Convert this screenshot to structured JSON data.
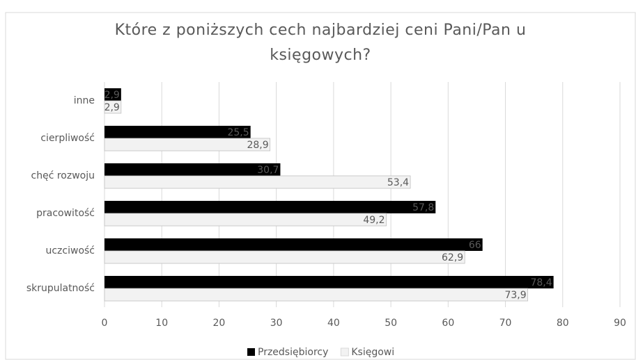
{
  "chart_data": {
    "type": "bar",
    "orientation": "horizontal",
    "title": "Które z poniższych cech najbardziej ceni Pani/Pan u księgowych?",
    "categories": [
      "inne",
      "cierpliwość",
      "chęć rozwoju",
      "pracowitość",
      "uczciwość",
      "skrupulatność"
    ],
    "series": [
      {
        "name": "Przedsiębiorcy",
        "color": "#000000",
        "values": [
          2.9,
          25.5,
          30.7,
          57.8,
          66,
          78.4
        ],
        "value_labels": [
          "2,9",
          "25,5",
          "30,7",
          "57,8",
          "66",
          "78,4"
        ]
      },
      {
        "name": "Księgowi",
        "color": "#f2f2f2",
        "values": [
          2.9,
          28.9,
          53.4,
          49.2,
          62.9,
          73.9
        ],
        "value_labels": [
          "2,9",
          "28,9",
          "53,4",
          "49,2",
          "62,9",
          "73,9"
        ]
      }
    ],
    "xlim": [
      0,
      90
    ],
    "xticks": [
      0,
      10,
      20,
      30,
      40,
      50,
      60,
      70,
      80,
      90
    ],
    "grid": true,
    "legend": "bottom"
  }
}
